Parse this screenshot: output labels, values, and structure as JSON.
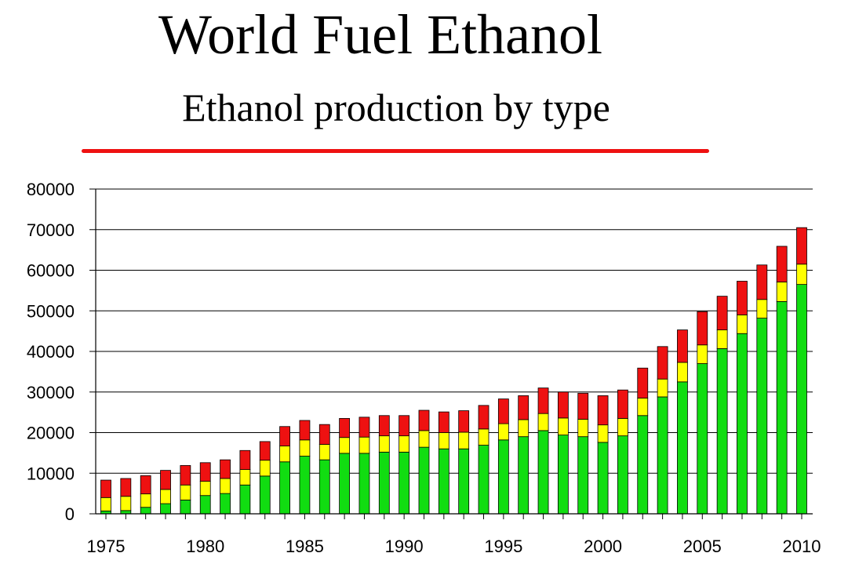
{
  "title": "World Fuel Ethanol",
  "subtitle": "Ethanol production by type",
  "colors": {
    "green": "#11dd11",
    "yellow": "#ffff00",
    "red": "#ee1111",
    "divider": "#ee1111"
  },
  "chart_data": {
    "type": "bar",
    "stacked": true,
    "title": "",
    "xlabel": "",
    "ylabel": "",
    "ylim": [
      0,
      80000
    ],
    "yticks": [
      0,
      10000,
      20000,
      30000,
      40000,
      50000,
      60000,
      70000,
      80000
    ],
    "xtick_labels": [
      "1975",
      "1980",
      "1985",
      "1990",
      "1995",
      "2000",
      "2005",
      "2010"
    ],
    "grid": "horizontal",
    "legend": "none",
    "categories": [
      1975,
      1976,
      1977,
      1978,
      1979,
      1980,
      1981,
      1982,
      1983,
      1984,
      1985,
      1986,
      1987,
      1988,
      1989,
      1990,
      1991,
      1992,
      1993,
      1994,
      1995,
      1996,
      1997,
      1998,
      1999,
      2000,
      2001,
      2002,
      2003,
      2004,
      2005,
      2006,
      2007,
      2008,
      2009,
      2010
    ],
    "series": [
      {
        "color": "#11dd11",
        "values": [
          700,
          800,
          1600,
          2500,
          3400,
          4500,
          5000,
          7100,
          9300,
          12800,
          14200,
          13300,
          14900,
          14900,
          15200,
          15200,
          16400,
          16000,
          16000,
          16900,
          18200,
          19000,
          20500,
          19400,
          19000,
          17600,
          19200,
          24200,
          28800,
          32500,
          37000,
          40700,
          44400,
          48200,
          52300,
          56500
        ]
      },
      {
        "color": "#ffff00",
        "values": [
          3300,
          3500,
          3300,
          3500,
          3700,
          3500,
          3700,
          3800,
          3900,
          3900,
          4000,
          3800,
          3900,
          4000,
          4000,
          4000,
          4100,
          4000,
          4100,
          4000,
          4000,
          4200,
          4200,
          4200,
          4300,
          4300,
          4300,
          4300,
          4400,
          4800,
          4600,
          4600,
          4600,
          4600,
          4800,
          5000
        ]
      },
      {
        "color": "#ee1111",
        "values": [
          4300,
          4400,
          4500,
          4700,
          4800,
          4600,
          4600,
          4700,
          4600,
          4800,
          4800,
          4900,
          4700,
          4900,
          5000,
          5000,
          5000,
          5100,
          5300,
          5800,
          6100,
          5900,
          6300,
          6400,
          6400,
          7200,
          7000,
          7400,
          8000,
          8000,
          8200,
          8300,
          8300,
          8500,
          8800,
          9000
        ]
      }
    ]
  }
}
